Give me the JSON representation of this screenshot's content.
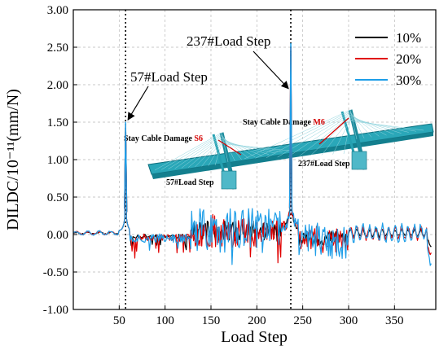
{
  "chart_data": {
    "type": "line",
    "xlabel": "Load Step",
    "ylabel": "DILDC/10⁻¹¹(mm/N)",
    "xlim": [
      0,
      395
    ],
    "ylim": [
      -1.0,
      3.0
    ],
    "xticks": [
      50,
      100,
      150,
      200,
      250,
      300,
      350
    ],
    "yticks": [
      -1.0,
      -0.5,
      0.0,
      0.5,
      1.0,
      1.5,
      2.0,
      2.5,
      3.0
    ],
    "ytick_labels": [
      "-1.00",
      "-0.50",
      "0.00",
      "0.50",
      "1.00",
      "1.50",
      "2.00",
      "2.50",
      "3.00"
    ],
    "grid": true,
    "legend_position": "top-right",
    "reference_lines_x": [
      57,
      237
    ],
    "series": [
      {
        "name": "10%",
        "color": "#000000",
        "amplitude": 0.45,
        "seed": 11,
        "peak57": 1.45,
        "peak237": 2.45
      },
      {
        "name": "20%",
        "color": "#e00000",
        "amplitude": 0.75,
        "seed": 23,
        "peak57": 1.47,
        "peak237": 2.5
      },
      {
        "name": "30%",
        "color": "#1e9ee8",
        "amplitude": 1.0,
        "seed": 37,
        "peak57": 1.5,
        "peak237": 2.55
      }
    ],
    "annotations": [
      {
        "text": "57#Load Step",
        "target_x": 57,
        "target_y": 1.5
      },
      {
        "text": "237#Load Step",
        "target_x": 237,
        "target_y": 1.95
      }
    ],
    "inset": {
      "label_s6_prefix": "Stay Cable Damage ",
      "label_s6_code": "S6",
      "label_m6_prefix": "Stay Cable Damage ",
      "label_m6_code": "M6",
      "label_57": "57#Load Step",
      "label_237": "237#Load Step"
    }
  }
}
